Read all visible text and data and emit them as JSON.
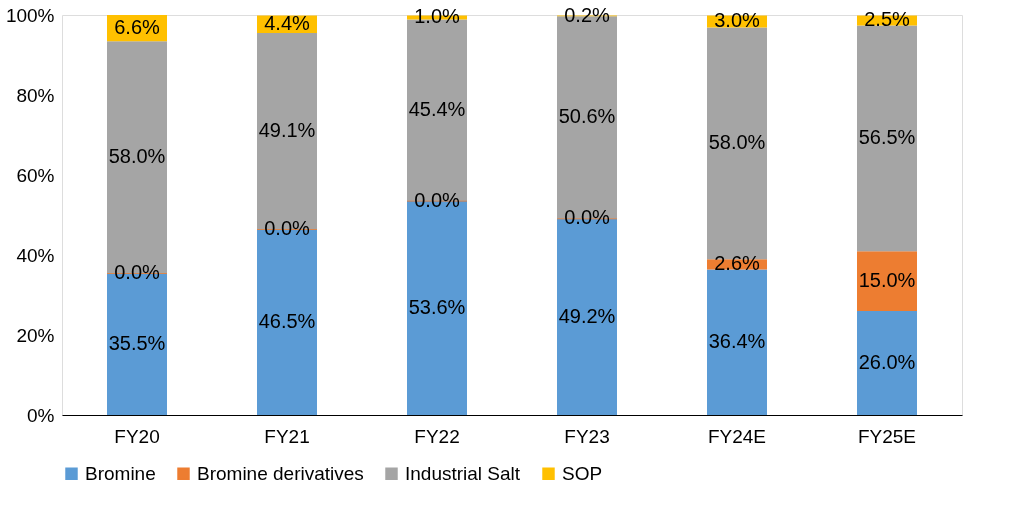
{
  "chart_data": {
    "type": "bar",
    "stacked": true,
    "categories": [
      "FY20",
      "FY21",
      "FY22",
      "FY23",
      "FY24E",
      "FY25E"
    ],
    "series": [
      {
        "name": "Bromine",
        "color": "#5b9bd5",
        "values": [
          35.5,
          46.5,
          53.6,
          49.2,
          36.4,
          26.0
        ],
        "value_labels": [
          "35.5%",
          "46.5%",
          "53.6%",
          "49.2%",
          "36.4%",
          "26.0%"
        ]
      },
      {
        "name": "Bromine derivatives",
        "color": "#ed7d31",
        "values": [
          0.0,
          0.0,
          0.0,
          0.0,
          2.6,
          15.0
        ],
        "value_labels": [
          "0.0%",
          "0.0%",
          "0.0%",
          "0.0%",
          "2.6%",
          "15.0%"
        ]
      },
      {
        "name": "Industrial Salt",
        "color": "#a5a5a5",
        "values": [
          58.0,
          49.1,
          45.4,
          50.6,
          58.0,
          56.5
        ],
        "value_labels": [
          "58.0%",
          "49.1%",
          "45.4%",
          "50.6%",
          "58.0%",
          "56.5%"
        ]
      },
      {
        "name": "SOP",
        "color": "#ffc000",
        "values": [
          6.6,
          4.4,
          1.0,
          0.2,
          3.0,
          2.5
        ],
        "value_labels": [
          "6.6%",
          "4.4%",
          "1.0%",
          "0.2%",
          "3.0%",
          "2.5%"
        ]
      }
    ],
    "ylim": [
      0,
      100.1
    ],
    "yticks": [
      {
        "value": 0,
        "label": "0%"
      },
      {
        "value": 20,
        "label": "20%"
      },
      {
        "value": 40,
        "label": "40%"
      },
      {
        "value": 60,
        "label": "60%"
      },
      {
        "value": 80,
        "label": "80%"
      },
      {
        "value": 100,
        "label": "100%"
      }
    ],
    "grid": false,
    "legend": "bottom"
  }
}
